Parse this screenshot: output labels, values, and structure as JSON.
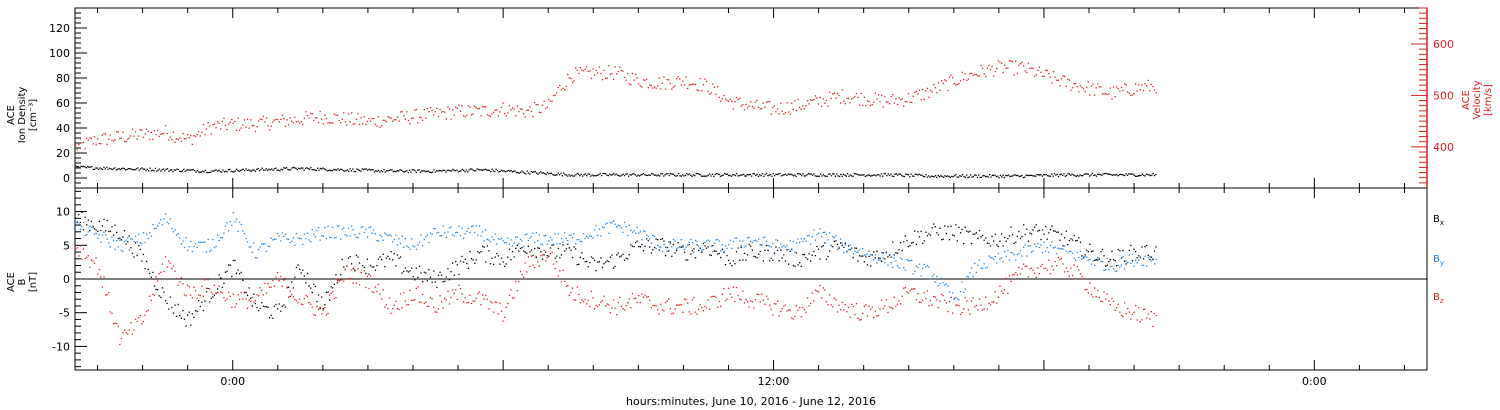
{
  "colors": {
    "density": "#000000",
    "velocity": "#e02020",
    "bx": "#000000",
    "by": "#1e88e5",
    "bz": "#e02020",
    "frame": "#000000"
  },
  "chart_data": [
    {
      "type": "scatter",
      "ylabel_lines": [
        "ACE",
        "Ion Density",
        "[cm⁻³]"
      ],
      "y_right_label_lines": [
        "ACE",
        "Velocity",
        "[km/s]"
      ],
      "xlim_hours": [
        -3.5,
        26.5
      ],
      "ylim_left": [
        -8,
        136
      ],
      "left_ticks": [
        "0",
        "20",
        "40",
        "60",
        "80",
        "100",
        "120"
      ],
      "ylim_right": [
        320,
        670
      ],
      "right_ticks": [
        "400",
        "500",
        "600"
      ],
      "series": [
        {
          "axis": "left",
          "x": [
            -3.5,
            -2.5,
            -1.5,
            -0.5,
            0.5,
            1.5,
            2.5,
            3.5,
            4.5,
            5.5,
            6.5,
            7.5,
            8.5,
            9.5,
            10.5,
            11.5,
            12.5,
            13.5,
            14.5,
            15.5,
            16.5,
            17.5,
            18.5,
            19.5,
            20.5
          ],
          "y": [
            9,
            8,
            7,
            6,
            7,
            8,
            7,
            6,
            6,
            7,
            5,
            3,
            3,
            3,
            3,
            3,
            3,
            3,
            3,
            2,
            2,
            2,
            3,
            3,
            3
          ]
        },
        {
          "axis": "right",
          "x": [
            -3.5,
            -3.0,
            -2.5,
            -2.0,
            -1.5,
            -1.0,
            -0.5,
            0.0,
            0.5,
            1.0,
            1.5,
            2.0,
            2.5,
            3.0,
            3.5,
            4.0,
            4.5,
            5.0,
            5.5,
            6.0,
            6.5,
            7.0,
            7.2,
            7.5,
            8.0,
            8.5,
            9.0,
            9.5,
            10.0,
            10.5,
            11.0,
            11.5,
            12.0,
            12.5,
            13.0,
            13.5,
            14.0,
            14.5,
            15.0,
            15.5,
            16.0,
            16.5,
            17.0,
            17.5,
            18.0,
            18.5,
            19.0,
            19.5,
            20.0,
            20.5
          ],
          "y": [
            400,
            415,
            420,
            425,
            430,
            415,
            440,
            445,
            445,
            450,
            455,
            460,
            455,
            450,
            455,
            460,
            465,
            470,
            470,
            475,
            470,
            480,
            510,
            540,
            545,
            545,
            530,
            525,
            530,
            520,
            490,
            480,
            475,
            480,
            490,
            500,
            495,
            490,
            495,
            510,
            530,
            545,
            555,
            555,
            540,
            525,
            515,
            505,
            515,
            520
          ]
        }
      ]
    },
    {
      "type": "scatter",
      "ylabel_lines": [
        "ACE",
        "B",
        "[nT]"
      ],
      "xlim_hours": [
        -3.5,
        26.5
      ],
      "ylim": [
        -13.5,
        13.5
      ],
      "ticks": [
        "10",
        "5",
        "0",
        "-5",
        "-10"
      ],
      "xlabel": "hours:minutes, June 10, 2016 - June 12, 2016",
      "x_ticks": [
        {
          "hour": 0,
          "label": "0:00"
        },
        {
          "hour": 12,
          "label": "12:00"
        },
        {
          "hour": 24,
          "label": "0:00"
        }
      ],
      "legend": [
        "Bx",
        "By",
        "Bz"
      ],
      "legend_placement": "right",
      "series": [
        {
          "name": "Bx",
          "x": [
            -3.5,
            -2.5,
            -2.0,
            -1.5,
            -1.0,
            -0.5,
            0.0,
            0.5,
            1.0,
            1.5,
            2.0,
            2.5,
            3.0,
            3.5,
            4.0,
            4.5,
            5.0,
            5.5,
            6.0,
            6.5,
            7.0,
            7.5,
            8.0,
            8.5,
            9.0,
            9.5,
            10.0,
            10.5,
            11.0,
            11.5,
            12.0,
            12.5,
            13.0,
            13.5,
            14.0,
            14.5,
            15.0,
            15.5,
            16.0,
            16.5,
            17.0,
            17.5,
            18.0,
            18.5,
            19.0,
            19.5,
            20.0,
            20.5
          ],
          "y": [
            9,
            7,
            3,
            -3,
            -6,
            -2,
            2,
            -4,
            -5,
            2,
            -4,
            3,
            2,
            3,
            1,
            0,
            2,
            4,
            3,
            5,
            4,
            4,
            2,
            3,
            5,
            5,
            4,
            5,
            3,
            4,
            4,
            3,
            4,
            5,
            3,
            4,
            6,
            7,
            7,
            6,
            6,
            7,
            7,
            6,
            4,
            3,
            4,
            4
          ]
        },
        {
          "name": "By",
          "x": [
            -3.5,
            -2.5,
            -2.0,
            -1.5,
            -1.0,
            -0.5,
            0.0,
            0.5,
            1.0,
            1.5,
            2.0,
            2.5,
            3.0,
            3.5,
            4.0,
            4.5,
            5.0,
            5.5,
            6.0,
            6.5,
            7.0,
            7.5,
            8.0,
            8.5,
            9.0,
            9.5,
            10.0,
            10.5,
            11.0,
            11.5,
            12.0,
            12.5,
            13.0,
            13.5,
            14.0,
            14.5,
            15.0,
            15.5,
            16.0,
            16.5,
            17.0,
            17.5,
            18.0,
            18.5,
            19.0,
            19.5,
            20.0,
            20.5
          ],
          "y": [
            8,
            5,
            6,
            9,
            5,
            5,
            9,
            4,
            6,
            6,
            7,
            7,
            7,
            6,
            5,
            7,
            7,
            7,
            5,
            6,
            6,
            6,
            7,
            8,
            7,
            5,
            5,
            5,
            5,
            6,
            5,
            5,
            7,
            5,
            4,
            3,
            2,
            1,
            -3,
            2,
            3,
            4,
            5,
            4,
            3,
            2,
            3,
            3
          ]
        },
        {
          "name": "Bz",
          "x": [
            -3.5,
            -3.0,
            -2.5,
            -2.0,
            -1.5,
            -1.0,
            -0.5,
            0.0,
            0.5,
            1.0,
            1.5,
            2.0,
            2.5,
            3.0,
            3.5,
            4.0,
            4.5,
            5.0,
            5.5,
            6.0,
            6.5,
            7.0,
            7.5,
            8.0,
            8.5,
            9.0,
            9.5,
            10.0,
            10.5,
            11.0,
            11.5,
            12.0,
            12.5,
            13.0,
            13.5,
            14.0,
            14.5,
            15.0,
            15.5,
            16.0,
            16.5,
            17.0,
            17.5,
            18.0,
            18.5,
            19.0,
            19.5,
            20.0,
            20.5
          ],
          "y": [
            5,
            2,
            -9,
            -6,
            3,
            -2,
            -1,
            -3,
            -3,
            0,
            -3,
            -5,
            1,
            0,
            -4,
            -2,
            -4,
            -2,
            -3,
            -5,
            2,
            4,
            -2,
            -3,
            -4,
            -3,
            -4,
            -4,
            -4,
            -2,
            -3,
            -4,
            -5,
            -2,
            -4,
            -5,
            -4,
            -2,
            -3,
            -4,
            -4,
            -2,
            1,
            2,
            2,
            -1,
            -4,
            -5,
            -6
          ]
        }
      ]
    }
  ]
}
